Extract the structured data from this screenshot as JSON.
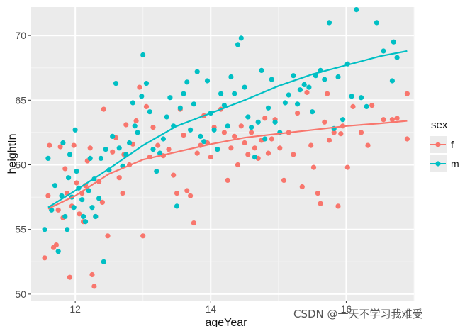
{
  "chart_data": {
    "type": "scatter",
    "title": "",
    "xlabel": "ageYear",
    "ylabel": "heightIn",
    "xlim": [
      11.35,
      17.0
    ],
    "ylim": [
      49.5,
      72.2
    ],
    "x_ticks": [
      12,
      14,
      16
    ],
    "y_ticks": [
      50,
      55,
      60,
      65,
      70
    ],
    "grid": true,
    "legend": {
      "title": "sex",
      "position": "right",
      "entries": [
        "f",
        "m"
      ]
    },
    "series": [
      {
        "name": "f",
        "color": "#F8766D",
        "points": [
          [
            11.55,
            52.8
          ],
          [
            11.6,
            57.6
          ],
          [
            11.62,
            61.5
          ],
          [
            11.68,
            53.6
          ],
          [
            11.72,
            53.8
          ],
          [
            11.75,
            56.5
          ],
          [
            11.78,
            61.4
          ],
          [
            11.82,
            55.9
          ],
          [
            11.85,
            59.7
          ],
          [
            11.88,
            57.8
          ],
          [
            11.92,
            51.3
          ],
          [
            11.95,
            56.8
          ],
          [
            11.98,
            61.5
          ],
          [
            12.02,
            58.6
          ],
          [
            12.06,
            56.2
          ],
          [
            12.1,
            57.8
          ],
          [
            12.12,
            55.6
          ],
          [
            12.15,
            58.4
          ],
          [
            12.18,
            60.3
          ],
          [
            12.22,
            61.3
          ],
          [
            12.25,
            51.5
          ],
          [
            12.28,
            50.6
          ],
          [
            12.3,
            56.0
          ],
          [
            12.35,
            58.7
          ],
          [
            12.4,
            57.1
          ],
          [
            12.42,
            64.3
          ],
          [
            12.48,
            54.5
          ],
          [
            12.55,
            61.0
          ],
          [
            12.6,
            62.1
          ],
          [
            12.65,
            59.0
          ],
          [
            12.7,
            57.8
          ],
          [
            12.72,
            60.8
          ],
          [
            12.75,
            63.1
          ],
          [
            12.8,
            60.0
          ],
          [
            12.85,
            61.6
          ],
          [
            12.9,
            63.4
          ],
          [
            12.95,
            66.0
          ],
          [
            13.0,
            54.5
          ],
          [
            13.05,
            64.5
          ],
          [
            13.1,
            60.6
          ],
          [
            13.15,
            62.9
          ],
          [
            13.22,
            61.5
          ],
          [
            13.3,
            60.7
          ],
          [
            13.38,
            61.2
          ],
          [
            13.45,
            59.2
          ],
          [
            13.5,
            57.8
          ],
          [
            13.55,
            64.3
          ],
          [
            13.6,
            62.3
          ],
          [
            13.65,
            58.0
          ],
          [
            13.7,
            57.6
          ],
          [
            13.75,
            55.5
          ],
          [
            13.8,
            60.9
          ],
          [
            13.85,
            61.5
          ],
          [
            13.9,
            63.8
          ],
          [
            13.95,
            61.7
          ],
          [
            14.0,
            60.6
          ],
          [
            14.05,
            62.9
          ],
          [
            14.1,
            61.2
          ],
          [
            14.15,
            64.3
          ],
          [
            14.2,
            62.5
          ],
          [
            14.25,
            58.8
          ],
          [
            14.3,
            61.3
          ],
          [
            14.35,
            62.2
          ],
          [
            14.4,
            60.0
          ],
          [
            14.45,
            63.0
          ],
          [
            14.5,
            61.7
          ],
          [
            14.55,
            60.8
          ],
          [
            14.6,
            62.5
          ],
          [
            14.65,
            61.3
          ],
          [
            14.7,
            60.5
          ],
          [
            14.75,
            61.9
          ],
          [
            14.8,
            63.6
          ],
          [
            14.85,
            60.9
          ],
          [
            14.9,
            62.0
          ],
          [
            14.95,
            63.5
          ],
          [
            15.02,
            61.3
          ],
          [
            15.08,
            58.8
          ],
          [
            15.15,
            62.5
          ],
          [
            15.22,
            60.8
          ],
          [
            15.28,
            64.0
          ],
          [
            15.35,
            58.3
          ],
          [
            15.42,
            65.6
          ],
          [
            15.48,
            61.5
          ],
          [
            15.52,
            59.8
          ],
          [
            15.58,
            57.8
          ],
          [
            15.62,
            57.0
          ],
          [
            15.68,
            63.3
          ],
          [
            15.72,
            65.5
          ],
          [
            15.75,
            61.9
          ],
          [
            15.82,
            62.5
          ],
          [
            15.88,
            56.8
          ],
          [
            15.92,
            62.4
          ],
          [
            15.95,
            63.0
          ],
          [
            16.02,
            59.8
          ],
          [
            16.1,
            64.5
          ],
          [
            16.22,
            62.5
          ],
          [
            16.32,
            61.5
          ],
          [
            16.38,
            64.6
          ],
          [
            16.68,
            63.5
          ],
          [
            16.55,
            63.5
          ],
          [
            16.75,
            63.6
          ],
          [
            16.9,
            65.5
          ],
          [
            16.9,
            62.0
          ]
        ],
        "smooth": [
          [
            11.6,
            56.6
          ],
          [
            12.0,
            57.6
          ],
          [
            12.5,
            59.3
          ],
          [
            13.0,
            60.4
          ],
          [
            13.5,
            61.0
          ],
          [
            14.0,
            61.6
          ],
          [
            14.5,
            62.1
          ],
          [
            15.0,
            62.4
          ],
          [
            15.5,
            62.7
          ],
          [
            16.0,
            63.0
          ],
          [
            16.5,
            63.2
          ],
          [
            16.9,
            63.4
          ]
        ]
      },
      {
        "name": "m",
        "color": "#00BFC4",
        "points": [
          [
            11.55,
            55.0
          ],
          [
            11.6,
            60.5
          ],
          [
            11.65,
            56.5
          ],
          [
            11.7,
            58.4
          ],
          [
            11.75,
            53.3
          ],
          [
            11.8,
            57.6
          ],
          [
            11.82,
            61.7
          ],
          [
            11.85,
            56.0
          ],
          [
            11.88,
            55.0
          ],
          [
            11.9,
            59.0
          ],
          [
            11.92,
            60.8
          ],
          [
            11.95,
            57.5
          ],
          [
            11.98,
            56.7
          ],
          [
            12.0,
            62.7
          ],
          [
            12.02,
            59.5
          ],
          [
            12.05,
            58.2
          ],
          [
            12.1,
            57.3
          ],
          [
            12.12,
            56.0
          ],
          [
            12.15,
            55.6
          ],
          [
            12.2,
            58.0
          ],
          [
            12.22,
            60.5
          ],
          [
            12.25,
            56.7
          ],
          [
            12.28,
            58.9
          ],
          [
            12.3,
            56.0
          ],
          [
            12.35,
            57.4
          ],
          [
            12.38,
            60.5
          ],
          [
            12.42,
            52.5
          ],
          [
            12.45,
            61.2
          ],
          [
            12.5,
            59.6
          ],
          [
            12.55,
            62.2
          ],
          [
            12.6,
            66.3
          ],
          [
            12.65,
            61.3
          ],
          [
            12.7,
            59.9
          ],
          [
            12.75,
            60.8
          ],
          [
            12.8,
            61.7
          ],
          [
            12.85,
            64.8
          ],
          [
            12.88,
            63.0
          ],
          [
            12.92,
            62.5
          ],
          [
            12.98,
            65.3
          ],
          [
            13.0,
            68.5
          ],
          [
            13.05,
            66.3
          ],
          [
            13.1,
            64.1
          ],
          [
            13.15,
            61.2
          ],
          [
            13.2,
            59.5
          ],
          [
            13.25,
            60.9
          ],
          [
            13.3,
            62.0
          ],
          [
            13.35,
            63.7
          ],
          [
            13.4,
            65.2
          ],
          [
            13.45,
            63.0
          ],
          [
            13.5,
            56.8
          ],
          [
            13.55,
            64.4
          ],
          [
            13.6,
            65.5
          ],
          [
            13.65,
            66.4
          ],
          [
            13.7,
            62.7
          ],
          [
            13.75,
            64.7
          ],
          [
            13.8,
            67.2
          ],
          [
            13.85,
            62.2
          ],
          [
            13.9,
            61.8
          ],
          [
            13.95,
            66.5
          ],
          [
            14.0,
            64.0
          ],
          [
            14.05,
            62.7
          ],
          [
            14.1,
            61.2
          ],
          [
            14.15,
            65.5
          ],
          [
            14.2,
            64.6
          ],
          [
            14.25,
            63.0
          ],
          [
            14.3,
            66.8
          ],
          [
            14.35,
            65.5
          ],
          [
            14.4,
            69.3
          ],
          [
            14.45,
            69.8
          ],
          [
            14.5,
            66.0
          ],
          [
            14.55,
            63.7
          ],
          [
            14.6,
            62.9
          ],
          [
            14.65,
            60.6
          ],
          [
            14.7,
            63.3
          ],
          [
            14.75,
            67.3
          ],
          [
            14.8,
            62.0
          ],
          [
            14.85,
            64.4
          ],
          [
            14.9,
            66.6
          ],
          [
            14.95,
            63.3
          ],
          [
            15.02,
            62.5
          ],
          [
            15.1,
            64.8
          ],
          [
            15.15,
            65.4
          ],
          [
            15.22,
            66.9
          ],
          [
            15.28,
            64.7
          ],
          [
            15.32,
            65.8
          ],
          [
            15.38,
            66.2
          ],
          [
            15.45,
            66.0
          ],
          [
            15.5,
            64.1
          ],
          [
            15.55,
            66.9
          ],
          [
            15.62,
            67.3
          ],
          [
            15.68,
            66.6
          ],
          [
            15.75,
            71.0
          ],
          [
            15.82,
            62.8
          ],
          [
            15.88,
            66.8
          ],
          [
            15.95,
            63.5
          ],
          [
            16.02,
            67.8
          ],
          [
            16.08,
            65.3
          ],
          [
            16.15,
            72.0
          ],
          [
            16.22,
            65.2
          ],
          [
            16.3,
            64.5
          ],
          [
            16.45,
            71.0
          ],
          [
            16.68,
            66.5
          ],
          [
            16.75,
            68.3
          ],
          [
            16.55,
            68.8
          ],
          [
            16.7,
            69.5
          ]
        ],
        "smooth": [
          [
            11.6,
            56.7
          ],
          [
            12.0,
            58.0
          ],
          [
            12.5,
            59.7
          ],
          [
            13.0,
            61.5
          ],
          [
            13.5,
            63.0
          ],
          [
            14.0,
            64.0
          ],
          [
            14.5,
            65.0
          ],
          [
            15.0,
            66.1
          ],
          [
            15.5,
            67.0
          ],
          [
            16.0,
            67.7
          ],
          [
            16.5,
            68.4
          ],
          [
            16.9,
            68.8
          ]
        ]
      }
    ]
  },
  "watermark": "CSDN @一天不学习我难受"
}
